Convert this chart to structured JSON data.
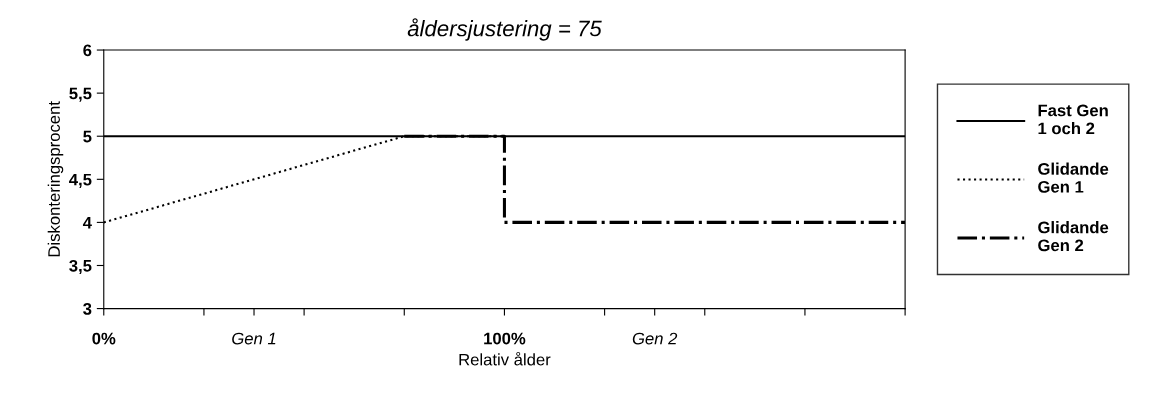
{
  "chart_data": {
    "type": "line",
    "title": "åldersjustering = 75",
    "xlabel": "Relativ ålder",
    "ylabel": "Diskonteringsprocent",
    "series": [
      {
        "name": "Fast Gen\n1 och 2",
        "color": "#000000",
        "line_style": "solid",
        "x": [
          0,
          200
        ],
        "values": [
          5,
          5
        ]
      },
      {
        "name": "Glidande\nGen 1",
        "color": "#000000",
        "line_style": "dotted",
        "x": [
          0,
          75,
          100
        ],
        "values": [
          4,
          5,
          5
        ]
      },
      {
        "name": "Glidande\nGen 2",
        "color": "#000000",
        "line_style": "dashdot",
        "x": [
          75,
          100,
          100,
          200
        ],
        "values": [
          5,
          5,
          4,
          4
        ]
      }
    ],
    "xlim": [
      0,
      200
    ],
    "ylim": [
      3,
      6
    ],
    "xticks": [
      {
        "value": 0,
        "label": "0%"
      },
      {
        "value": 25,
        "label": null
      },
      {
        "value": 37.5,
        "label": "Gen 1"
      },
      {
        "value": 50,
        "label": null
      },
      {
        "value": 75,
        "label": null
      },
      {
        "value": 100,
        "label": "100%"
      },
      {
        "value": 125,
        "label": null
      },
      {
        "value": 137.5,
        "label": "Gen 2"
      },
      {
        "value": 150,
        "label": null
      },
      {
        "value": 175,
        "label": null
      },
      {
        "value": 200,
        "label": null
      }
    ],
    "yticks": [
      3,
      {
        "value": 3.5,
        "label": "3,5"
      },
      4,
      {
        "value": 4.5,
        "label": "4,5"
      },
      5,
      {
        "value": 5.5,
        "label": "5,5"
      },
      6
    ],
    "grid": false,
    "legend": "right",
    "marker": "none"
  }
}
